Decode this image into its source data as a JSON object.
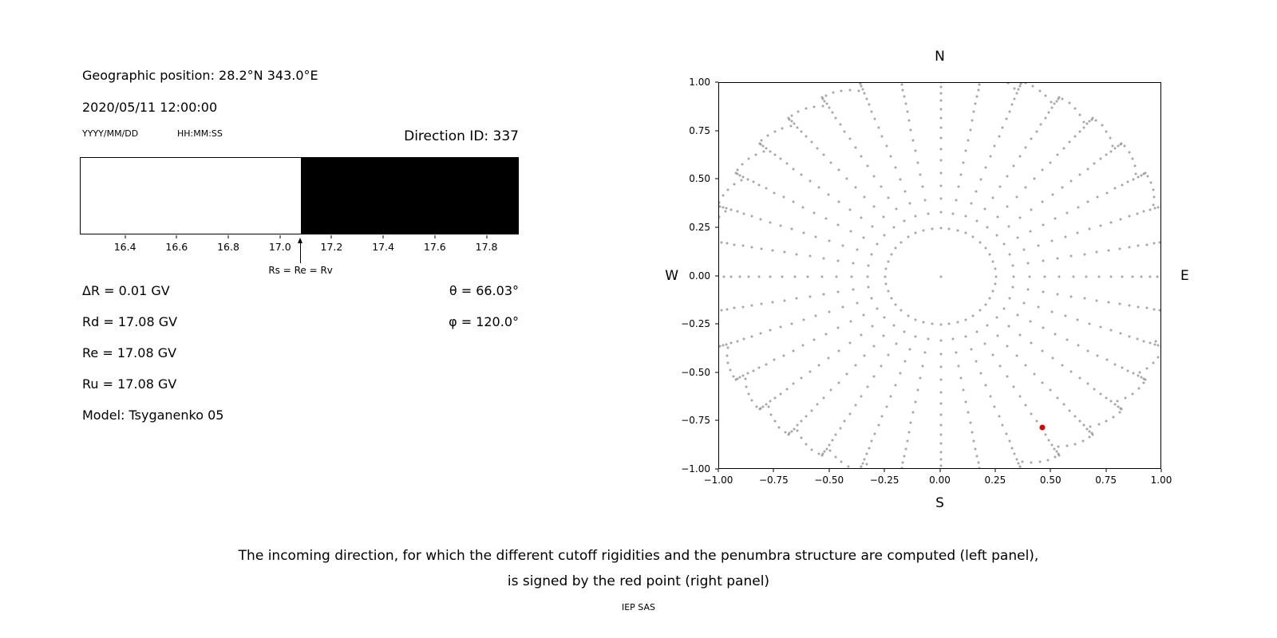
{
  "colors": {
    "background": "#ffffff",
    "text": "#000000",
    "gray_dot": "#8f8f8f",
    "red_point": "#e00000",
    "bar_forbidden": "#000000",
    "bar_allowed": "#ffffff"
  },
  "left_panel": {
    "geo_position": "Geographic position: 28.2°N 343.0°E",
    "datetime": "2020/05/11 12:00:00",
    "date_format_hint": "YYYY/MM/DD",
    "time_format_hint": "HH:MM:SS",
    "direction_id": "Direction ID: 337",
    "arrow_label": "Rs = Re = Rv",
    "delta_r": "ΔR = 0.01 GV",
    "rd": "Rd = 17.08 GV",
    "re": "Re = 17.08 GV",
    "ru": "Ru = 17.08 GV",
    "model": "Model: Tsyganenko 05",
    "theta": "θ = 66.03°",
    "phi": "φ = 120.0°"
  },
  "caption": {
    "line1": "The incoming direction, for which the different cutoff rigidities and the penumbra structure are computed (left panel),",
    "line2": "is signed by the red point (right panel)",
    "credit": "IEP SAS"
  },
  "chart_data": [
    {
      "type": "bar",
      "name": "penumbra-structure",
      "x_range": [
        16.225,
        17.925
      ],
      "boundary_value": 17.08,
      "x_ticks": [
        16.4,
        16.6,
        16.8,
        17.0,
        17.2,
        17.4,
        17.6,
        17.8
      ],
      "x_tick_labels": [
        "16.4",
        "16.6",
        "16.8",
        "17.0",
        "17.2",
        "17.4",
        "17.6",
        "17.8"
      ],
      "regions": [
        {
          "from": 16.225,
          "to": 17.08,
          "color": "#ffffff"
        },
        {
          "from": 17.08,
          "to": 17.925,
          "color": "#000000"
        }
      ],
      "marker": {
        "value": 17.08,
        "label": "Rs = Re = Rv"
      }
    },
    {
      "type": "scatter",
      "name": "incoming-directions",
      "xlim": [
        -1.0,
        1.0
      ],
      "ylim": [
        -1.0,
        1.0
      ],
      "x_ticks": [
        -1.0,
        -0.75,
        -0.5,
        -0.25,
        0.0,
        0.25,
        0.5,
        0.75,
        1.0
      ],
      "x_tick_labels": [
        "−1.00",
        "−0.75",
        "−0.50",
        "−0.25",
        "0.00",
        "0.25",
        "0.50",
        "0.75",
        "1.00"
      ],
      "y_ticks": [
        1.0,
        0.75,
        0.5,
        0.25,
        0.0,
        -0.25,
        -0.5,
        -0.75,
        -1.0
      ],
      "y_tick_labels": [
        "1.00",
        "0.75",
        "0.50",
        "0.25",
        "0.00",
        "−0.25",
        "−0.50",
        "−0.75",
        "−1.00"
      ],
      "compass_labels": {
        "top": "N",
        "bottom": "S",
        "left": "W",
        "right": "E"
      },
      "gray_dots_generator": {
        "description": "36 radial spokes of gray dots (one per 10° azimuth), dot radius r = 1.07·sin(zenith), zenith 18°–106° step 4°, with a small clockwise hook past 88°; inner ring of 40 dots at r = 0.25 and one dot at the center",
        "spokes": 36,
        "azimuth_step_deg": 10,
        "zenith_min_deg": 18,
        "zenith_max_deg": 106,
        "zenith_step_deg": 4,
        "radius_scale": 1.07,
        "hook_start_deg": 88,
        "hook_drift_deg_per_deg": 0.5,
        "inner_ring_radius": 0.25,
        "inner_ring_points": 40,
        "center_dot": true
      },
      "red_point": {
        "x": 0.46,
        "y": -0.78
      }
    }
  ]
}
